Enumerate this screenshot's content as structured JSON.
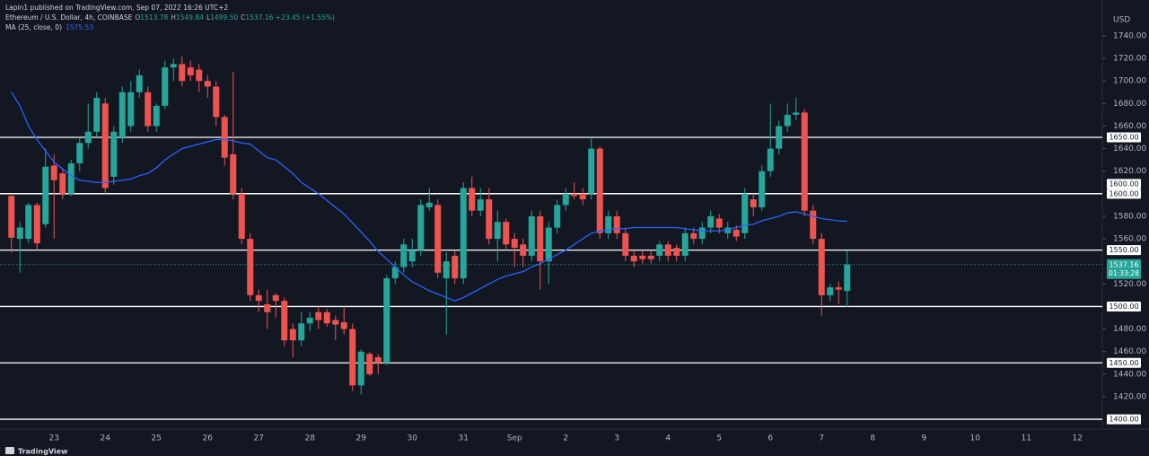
{
  "header": {
    "publisher": "Lapin1 published on TradingView.com, Sep 07, 2022 16:26 UTC+2",
    "ohlc": [
      {
        "key": "O",
        "value": "1513.78"
      },
      {
        "key": "H",
        "value": "1549.84"
      },
      {
        "key": "L",
        "value": "1499.50"
      },
      {
        "key": "C",
        "value": "1537.16"
      }
    ],
    "change": "+23.45 (+1.55%)",
    "currency": "USD",
    "countdown": "01:33:28",
    "logo": "TradingView"
  },
  "chart_data": {
    "type": "candlestick",
    "categories": [
      null,
      null,
      null,
      null,
      null,
      "23",
      null,
      null,
      null,
      null,
      null,
      "24",
      null,
      null,
      null,
      null,
      null,
      "25",
      null,
      null,
      null,
      null,
      null,
      "26",
      null,
      null,
      null,
      null,
      null,
      "27",
      null,
      null,
      null,
      null,
      null,
      "28",
      null,
      null,
      null,
      null,
      null,
      "29",
      null,
      null,
      null,
      null,
      null,
      "30",
      null,
      null,
      null,
      null,
      null,
      "31",
      null,
      null,
      null,
      null,
      null,
      "Sep",
      null,
      null,
      null,
      null,
      null,
      "2",
      null,
      null,
      null,
      null,
      null,
      "3",
      null,
      null,
      null,
      null,
      null,
      "4",
      null,
      null,
      null,
      null,
      null,
      "5",
      null,
      null,
      null,
      null,
      null,
      "6",
      null,
      null,
      null,
      null,
      null,
      "7",
      null,
      null,
      null,
      null,
      null,
      "8",
      null,
      null,
      null,
      null,
      null,
      "9",
      null,
      null,
      null,
      null,
      null,
      "10",
      null,
      null,
      null,
      null,
      null,
      "11",
      null,
      null,
      null,
      null,
      null,
      "12"
    ],
    "series": [
      {
        "name": "Ethereum / U.S. Dollar, 4h, COINBASE",
        "type": "candlestick",
        "up_color": "#26a69a",
        "down_color": "#ef5350",
        "open": [
          1598,
          1560,
          1560,
          1590,
          1573,
          1625,
          1618,
          1600,
          1627,
          1645,
          1655,
          1680,
          1615,
          1650,
          1660,
          1690,
          1690,
          1660,
          1678,
          1712,
          1715,
          1712,
          1710,
          1700,
          1695,
          1668,
          1635,
          1600,
          1560,
          1510,
          1502,
          1510,
          1505,
          1480,
          1470,
          1485,
          1495,
          1495,
          1488,
          1486,
          1480,
          1430,
          1458,
          1455,
          1450,
          1525,
          1535,
          1540,
          1550,
          1588,
          1590,
          1525,
          1545,
          1525,
          1605,
          1585,
          1595,
          1560,
          1575,
          1560,
          1555,
          1545,
          1580,
          1540,
          1570,
          1590,
          1600,
          1600,
          1600,
          1640,
          1565,
          1580,
          1565,
          1545,
          1545,
          1545,
          1545,
          1555,
          1552,
          1545,
          1565,
          1560,
          1570,
          1578,
          1565,
          1568,
          1565,
          1595,
          1588,
          1620,
          1640,
          1660,
          1670,
          1672,
          1585,
          1560,
          1510,
          1517,
          1513.78,
          null,
          null,
          null,
          null,
          null,
          null,
          null,
          null,
          null,
          null,
          null,
          null,
          null,
          null,
          null,
          null,
          null,
          null,
          null,
          null,
          null,
          null,
          null,
          null,
          null,
          null,
          null
        ],
        "high": [
          1600,
          1575,
          1592,
          1592,
          1640,
          1635,
          1622,
          1630,
          1650,
          1680,
          1690,
          1685,
          1660,
          1695,
          1700,
          1710,
          1695,
          1680,
          1718,
          1720,
          1722,
          1718,
          1715,
          1705,
          1700,
          1670,
          1708,
          1605,
          1565,
          1515,
          1515,
          1512,
          1508,
          1485,
          1495,
          1495,
          1500,
          1498,
          1492,
          1500,
          1485,
          1462,
          1460,
          1458,
          1528,
          1540,
          1560,
          1560,
          1595,
          1605,
          1595,
          1548,
          1550,
          1610,
          1615,
          1605,
          1605,
          1585,
          1578,
          1565,
          1560,
          1585,
          1585,
          1575,
          1595,
          1605,
          1610,
          1605,
          1650,
          1642,
          1585,
          1585,
          1570,
          1550,
          1550,
          1550,
          1558,
          1558,
          1555,
          1570,
          1570,
          1575,
          1585,
          1582,
          1575,
          1572,
          1605,
          1600,
          1625,
          1680,
          1665,
          1680,
          1685,
          1675,
          1590,
          1565,
          1520,
          1522,
          1549.84,
          null,
          null,
          null,
          null,
          null,
          null,
          null,
          null,
          null,
          null,
          null,
          null,
          null,
          null,
          null,
          null,
          null,
          null,
          null,
          null,
          null,
          null,
          null,
          null,
          null,
          null,
          null
        ],
        "low": [
          1548,
          1530,
          1556,
          1550,
          1570,
          1560,
          1595,
          1598,
          1620,
          1640,
          1650,
          1600,
          1608,
          1645,
          1655,
          1685,
          1655,
          1655,
          1675,
          1700,
          1695,
          1700,
          1690,
          1685,
          1660,
          1625,
          1595,
          1555,
          1505,
          1495,
          1480,
          1490,
          1465,
          1455,
          1465,
          1478,
          1480,
          1482,
          1470,
          1475,
          1425,
          1422,
          1438,
          1440,
          1448,
          1520,
          1530,
          1535,
          1545,
          1585,
          1525,
          1475,
          1520,
          1520,
          1580,
          1580,
          1555,
          1540,
          1550,
          1535,
          1535,
          1540,
          1515,
          1520,
          1565,
          1585,
          1595,
          1590,
          1595,
          1560,
          1560,
          1560,
          1540,
          1535,
          1538,
          1538,
          1540,
          1540,
          1540,
          1540,
          1555,
          1555,
          1565,
          1565,
          1560,
          1558,
          1560,
          1580,
          1585,
          1615,
          1635,
          1655,
          1665,
          1580,
          1555,
          1492,
          1505,
          1502,
          1499.5,
          null,
          null,
          null,
          null,
          null,
          null,
          null,
          null,
          null,
          null,
          null,
          null,
          null,
          null,
          null,
          null,
          null,
          null,
          null,
          null,
          null,
          null,
          null,
          null,
          null,
          null,
          null
        ],
        "close": [
          1561,
          1570,
          1590,
          1556,
          1624,
          1612,
          1600,
          1627,
          1645,
          1655,
          1685,
          1605,
          1655,
          1690,
          1690,
          1705,
          1660,
          1678,
          1712,
          1715,
          1700,
          1705,
          1700,
          1695,
          1668,
          1632,
          1600,
          1560,
          1510,
          1505,
          1495,
          1505,
          1470,
          1470,
          1485,
          1490,
          1488,
          1485,
          1484,
          1480,
          1430,
          1460,
          1440,
          1450,
          1525,
          1535,
          1555,
          1550,
          1590,
          1592,
          1530,
          1540,
          1525,
          1605,
          1585,
          1595,
          1560,
          1575,
          1555,
          1552,
          1545,
          1580,
          1540,
          1570,
          1590,
          1600,
          1598,
          1595,
          1640,
          1565,
          1580,
          1565,
          1545,
          1540,
          1542,
          1542,
          1555,
          1545,
          1545,
          1565,
          1560,
          1570,
          1580,
          1570,
          1570,
          1562,
          1600,
          1588,
          1620,
          1640,
          1660,
          1670,
          1672,
          1585,
          1560,
          1510,
          1517,
          1515,
          1537.16,
          null,
          null,
          null,
          null,
          null,
          null,
          null,
          null,
          null,
          null,
          null,
          null,
          null,
          null,
          null,
          null,
          null,
          null,
          null,
          null,
          null,
          null,
          null,
          null,
          null,
          null,
          null
        ]
      },
      {
        "name": "MA (25, close, 0)",
        "type": "line",
        "color": "#2962ff",
        "values": [
          1690,
          1678,
          1660,
          1648,
          1638,
          1628,
          1622,
          1616,
          1612,
          1611,
          1610,
          1610,
          1611,
          1612,
          1613,
          1616,
          1618,
          1623,
          1630,
          1635,
          1640,
          1642,
          1644,
          1646,
          1648,
          1648,
          1647,
          1645,
          1644,
          1638,
          1632,
          1630,
          1624,
          1618,
          1610,
          1605,
          1600,
          1594,
          1588,
          1582,
          1574,
          1566,
          1558,
          1549,
          1542,
          1535,
          1528,
          1522,
          1518,
          1514,
          1511,
          1508,
          1505,
          1508,
          1512,
          1516,
          1520,
          1524,
          1527,
          1529,
          1531,
          1535,
          1538,
          1542,
          1546,
          1550,
          1555,
          1560,
          1565,
          1567,
          1568,
          1569,
          1569,
          1570,
          1570,
          1570,
          1570,
          1570,
          1570,
          1569,
          1568,
          1567,
          1567,
          1567,
          1568,
          1570,
          1572,
          1573,
          1576,
          1578,
          1580,
          1583,
          1584,
          1582,
          1580,
          1578,
          1577,
          1576,
          1575.53,
          null,
          null,
          null,
          null,
          null,
          null,
          null,
          null,
          null,
          null,
          null,
          null,
          null,
          null,
          null,
          null,
          null,
          null,
          null,
          null,
          null,
          null,
          null,
          null,
          null,
          null,
          null
        ]
      }
    ],
    "levels": [
      {
        "value": 1650,
        "label": "1650.00"
      },
      {
        "value": 1600,
        "label": "1600.00"
      },
      {
        "value": 1600,
        "label": "1600.00"
      },
      {
        "value": 1550,
        "label": "1550.00"
      },
      {
        "value": 1500,
        "label": "1500.00"
      },
      {
        "value": 1450,
        "label": "1450.00"
      },
      {
        "value": 1400,
        "label": "1400.00"
      }
    ],
    "ylim": [
      1391.3,
      1771.8
    ],
    "yticks": [
      {
        "value": 1740,
        "label": "1740.00"
      },
      {
        "value": 1720,
        "label": "1720.00"
      },
      {
        "value": 1700,
        "label": "1700.00"
      },
      {
        "value": 1680,
        "label": "1680.00"
      },
      {
        "value": 1660,
        "label": "1660.00"
      },
      {
        "value": 1640,
        "label": "1640.00"
      },
      {
        "value": 1620,
        "label": "1620.00"
      },
      {
        "value": 1580,
        "label": "1580.00"
      },
      {
        "value": 1560,
        "label": "1560.00"
      },
      {
        "value": 1520,
        "label": "1520.00"
      },
      {
        "value": 1480,
        "label": "1480.00"
      },
      {
        "value": 1460,
        "label": "1460.00"
      },
      {
        "value": 1440,
        "label": "1440.00"
      },
      {
        "value": 1420,
        "label": "1420.00"
      }
    ],
    "grid": false
  }
}
